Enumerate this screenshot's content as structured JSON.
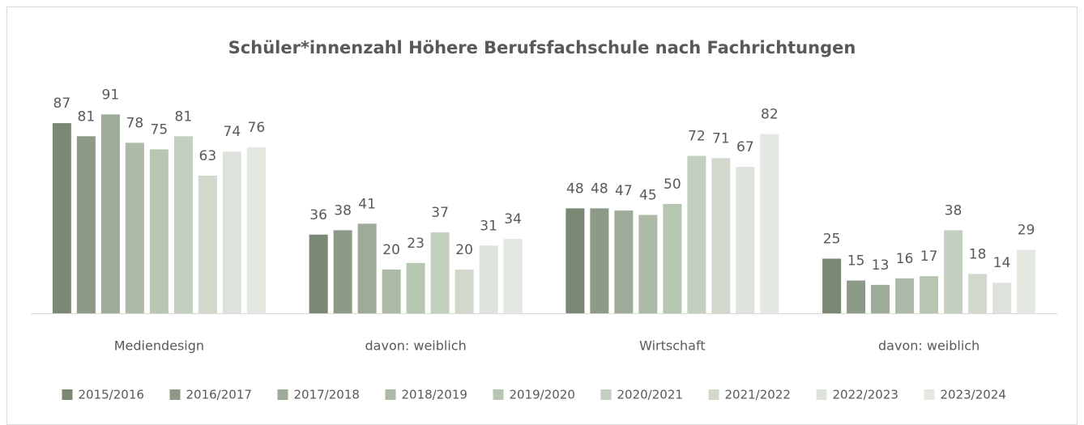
{
  "chart_data": {
    "type": "bar",
    "title": "Schüler*innenzahl Höhere Berufsfachschule nach Fachrichtungen",
    "categories": [
      "Mediendesign",
      "davon: weiblich",
      "Wirtschaft",
      "davon: weiblich"
    ],
    "series": [
      {
        "name": "2015/2016",
        "color": "#7a8874",
        "values": [
          87,
          36,
          48,
          25
        ]
      },
      {
        "name": "2016/2017",
        "color": "#8c9a87",
        "values": [
          81,
          38,
          48,
          15
        ]
      },
      {
        "name": "2017/2018",
        "color": "#9dab98",
        "values": [
          91,
          41,
          47,
          13
        ]
      },
      {
        "name": "2018/2019",
        "color": "#adbaa8",
        "values": [
          78,
          20,
          45,
          16
        ]
      },
      {
        "name": "2019/2020",
        "color": "#b7c6b1",
        "values": [
          75,
          23,
          50,
          17
        ]
      },
      {
        "name": "2020/2021",
        "color": "#c3cfbf",
        "values": [
          81,
          37,
          72,
          38
        ]
      },
      {
        "name": "2021/2022",
        "color": "#d0d9cc",
        "values": [
          63,
          20,
          71,
          18
        ]
      },
      {
        "name": "2022/2023",
        "color": "#dde3da",
        "values": [
          74,
          31,
          67,
          14
        ]
      },
      {
        "name": "2023/2024",
        "color": "#e3e8e0",
        "values": [
          76,
          34,
          82,
          29
        ]
      }
    ]
  }
}
